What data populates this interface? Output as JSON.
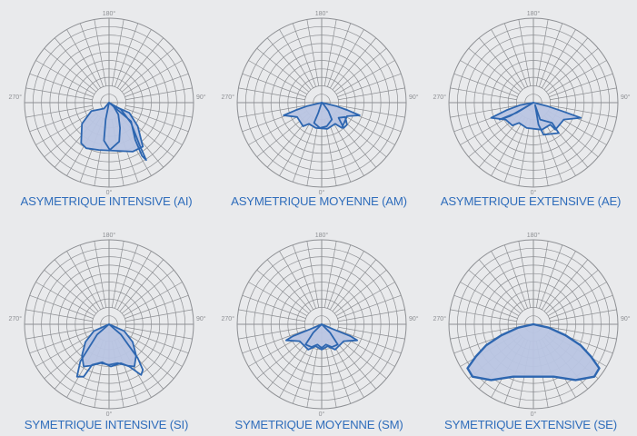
{
  "colors": {
    "background": "#e9eaec",
    "grid": "#8d8f93",
    "curve_stroke": "#2d66b0",
    "curve_fill": "#b9c5e3",
    "caption": "#2f6dbb",
    "angle_label": "#8d8f93"
  },
  "angle_labels": {
    "top": "180°",
    "right": "90°",
    "bottom": "0°",
    "left": "270°"
  },
  "diagrams": [
    {
      "caption": "ASYMETRIQUE INTENSIVE (AI)",
      "curves": [
        [
          [
            0,
            0
          ],
          [
            -0.06,
            0.07
          ],
          [
            -0.21,
            0.1
          ],
          [
            -0.32,
            0.25
          ],
          [
            -0.33,
            0.48
          ],
          [
            -0.27,
            0.54
          ],
          [
            -0.12,
            0.56
          ],
          [
            0.08,
            0.57
          ],
          [
            0.28,
            0.58
          ],
          [
            0.4,
            0.52
          ],
          [
            0.34,
            0.28
          ],
          [
            0.24,
            0.12
          ],
          [
            0.06,
            0.04
          ]
        ],
        [
          [
            0,
            0
          ],
          [
            -0.04,
            0.2
          ],
          [
            -0.06,
            0.45
          ],
          [
            0.01,
            0.56
          ],
          [
            0.12,
            0.46
          ],
          [
            0.13,
            0.3
          ],
          [
            0.11,
            0.14
          ],
          [
            0.05,
            0.04
          ]
        ],
        [
          [
            0,
            0
          ],
          [
            0.14,
            0.08
          ],
          [
            0.26,
            0.24
          ],
          [
            0.36,
            0.5
          ],
          [
            0.44,
            0.68
          ],
          [
            0.39,
            0.63
          ],
          [
            0.31,
            0.44
          ],
          [
            0.26,
            0.22
          ]
        ]
      ]
    },
    {
      "caption": "ASYMETRIQUE MOYENNE (AM)",
      "curves": [
        [
          [
            0,
            0
          ],
          [
            0.17,
            0.04
          ],
          [
            0.31,
            0.09
          ],
          [
            0.45,
            0.15
          ],
          [
            0.3,
            0.16
          ],
          [
            0.24,
            0.3
          ],
          [
            0.16,
            0.25
          ],
          [
            0.07,
            0.31
          ],
          [
            -0.07,
            0.3
          ],
          [
            -0.15,
            0.25
          ],
          [
            -0.22,
            0.28
          ],
          [
            -0.29,
            0.17
          ],
          [
            -0.45,
            0.15
          ],
          [
            -0.31,
            0.09
          ],
          [
            -0.17,
            0.04
          ]
        ],
        [
          [
            0,
            0
          ],
          [
            -0.04,
            0.12
          ],
          [
            -0.09,
            0.24
          ],
          [
            -0.02,
            0.3
          ],
          [
            0.06,
            0.28
          ],
          [
            0.12,
            0.2
          ],
          [
            0.08,
            0.1
          ],
          [
            0.03,
            0.03
          ]
        ],
        [
          [
            0.2,
            0.18
          ],
          [
            0.26,
            0.3
          ],
          [
            0.3,
            0.26
          ],
          [
            0.28,
            0.17
          ]
        ]
      ]
    },
    {
      "caption": "ASYMETRIQUE EXTENSIVE (AE)",
      "curves": [
        [
          [
            0,
            0
          ],
          [
            0.16,
            0.04
          ],
          [
            0.34,
            0.1
          ],
          [
            0.56,
            0.18
          ],
          [
            0.36,
            0.2
          ],
          [
            0.26,
            0.32
          ],
          [
            0.2,
            0.26
          ],
          [
            0.1,
            0.32
          ],
          [
            -0.08,
            0.3
          ],
          [
            -0.17,
            0.24
          ],
          [
            -0.25,
            0.27
          ],
          [
            -0.33,
            0.2
          ],
          [
            -0.5,
            0.18
          ],
          [
            -0.32,
            0.09
          ],
          [
            -0.16,
            0.03
          ]
        ],
        [
          [
            0,
            0
          ],
          [
            -0.28,
            0.16
          ],
          [
            -0.4,
            0.2
          ],
          [
            -0.2,
            0.12
          ]
        ],
        [
          [
            0.02,
            0.03
          ],
          [
            0.08,
            0.2
          ],
          [
            0.22,
            0.24
          ],
          [
            0.3,
            0.36
          ],
          [
            0.12,
            0.38
          ],
          [
            0.06,
            0.26
          ]
        ]
      ]
    },
    {
      "caption": "SYMETRIQUE INTENSIVE (SI)",
      "curves": [
        [
          [
            0,
            0
          ],
          [
            -0.18,
            0.08
          ],
          [
            -0.28,
            0.21
          ],
          [
            -0.32,
            0.37
          ],
          [
            -0.3,
            0.5
          ],
          [
            -0.22,
            0.49
          ],
          [
            -0.1,
            0.46
          ],
          [
            0,
            0.48
          ],
          [
            0.1,
            0.46
          ],
          [
            0.22,
            0.49
          ],
          [
            0.3,
            0.5
          ],
          [
            0.32,
            0.37
          ],
          [
            0.28,
            0.21
          ],
          [
            0.18,
            0.08
          ]
        ],
        [
          [
            0,
            0
          ],
          [
            -0.14,
            0.12
          ],
          [
            -0.34,
            0.44
          ],
          [
            -0.38,
            0.62
          ],
          [
            -0.3,
            0.62
          ],
          [
            -0.2,
            0.48
          ],
          [
            -0.08,
            0.45
          ],
          [
            0.02,
            0.5
          ],
          [
            0.14,
            0.46
          ],
          [
            0.24,
            0.5
          ],
          [
            0.38,
            0.6
          ],
          [
            0.4,
            0.54
          ],
          [
            0.34,
            0.4
          ],
          [
            0.14,
            0.12
          ]
        ]
      ]
    },
    {
      "caption": "SYMETRIQUE MOYENNE (SM)",
      "curves": [
        [
          [
            0,
            0
          ],
          [
            0.14,
            0.06
          ],
          [
            0.34,
            0.14
          ],
          [
            0.42,
            0.19
          ],
          [
            0.26,
            0.2
          ],
          [
            0.16,
            0.3
          ],
          [
            0.07,
            0.26
          ],
          [
            0,
            0.3
          ],
          [
            -0.07,
            0.26
          ],
          [
            -0.16,
            0.3
          ],
          [
            -0.26,
            0.2
          ],
          [
            -0.42,
            0.19
          ],
          [
            -0.34,
            0.14
          ],
          [
            -0.14,
            0.06
          ]
        ],
        [
          [
            0,
            0
          ],
          [
            -0.1,
            0.1
          ],
          [
            -0.19,
            0.24
          ],
          [
            -0.12,
            0.27
          ],
          [
            -0.05,
            0.24
          ],
          [
            0,
            0.28
          ],
          [
            0.05,
            0.24
          ],
          [
            0.12,
            0.27
          ],
          [
            0.19,
            0.24
          ],
          [
            0.1,
            0.1
          ]
        ]
      ]
    },
    {
      "caption": "SYMETRIQUE EXTENSIVE (SE)",
      "curves": [
        [
          [
            0,
            0
          ],
          [
            0.18,
            0.04
          ],
          [
            0.38,
            0.13
          ],
          [
            0.56,
            0.25
          ],
          [
            0.68,
            0.38
          ],
          [
            0.78,
            0.52
          ],
          [
            0.72,
            0.62
          ],
          [
            0.5,
            0.66
          ],
          [
            0.24,
            0.62
          ],
          [
            0,
            0.62
          ],
          [
            -0.24,
            0.62
          ],
          [
            -0.5,
            0.66
          ],
          [
            -0.72,
            0.62
          ],
          [
            -0.78,
            0.52
          ],
          [
            -0.68,
            0.38
          ],
          [
            -0.56,
            0.25
          ],
          [
            -0.38,
            0.13
          ],
          [
            -0.18,
            0.04
          ]
        ]
      ]
    }
  ]
}
